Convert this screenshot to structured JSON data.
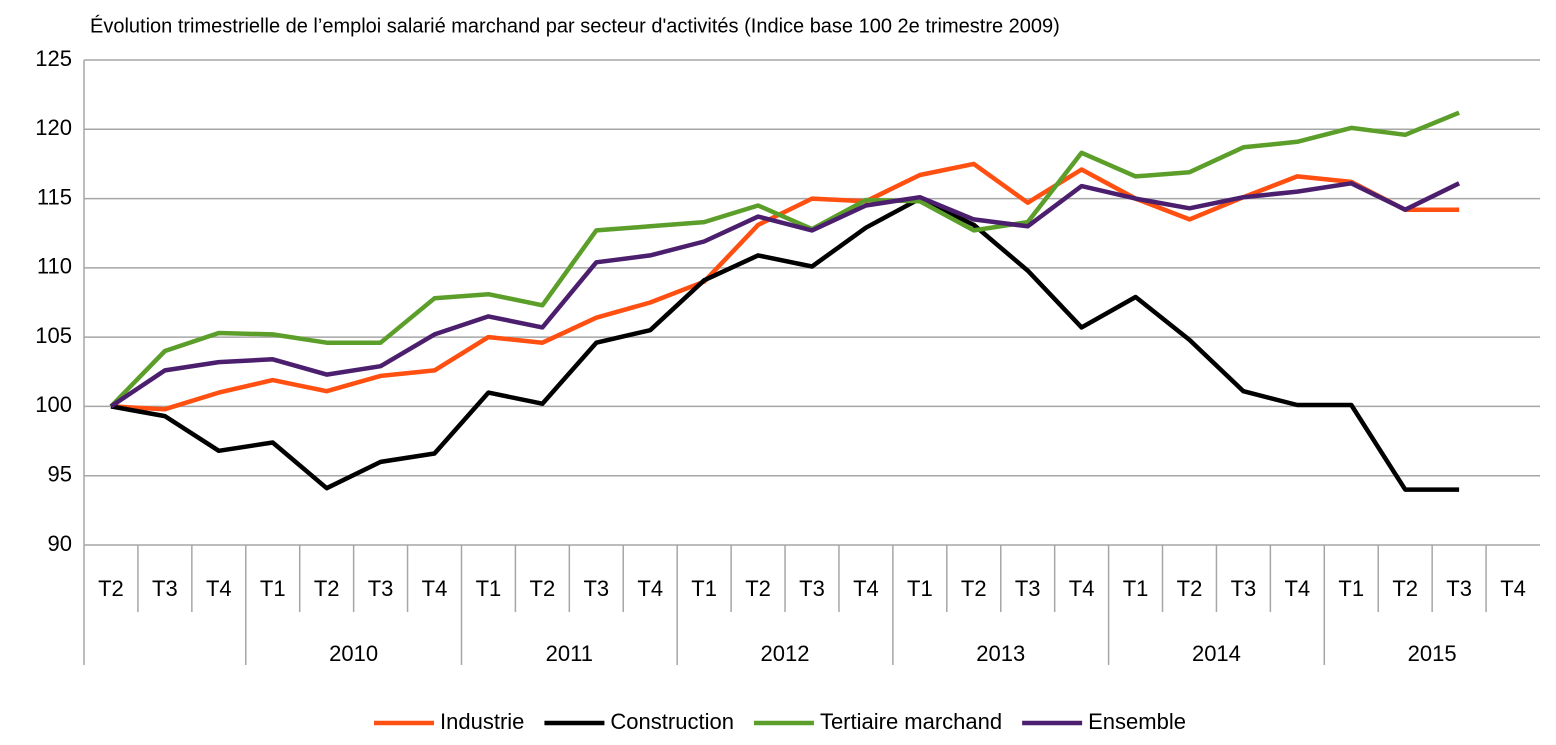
{
  "chart_data": {
    "type": "line",
    "title": "Évolution trimestrielle de l’emploi salarié marchand par secteur d'activités (Indice base 100 2e trimestre 2009)",
    "categories": [
      "T2",
      "T3",
      "T4",
      "T1",
      "T2",
      "T3",
      "T4",
      "T1",
      "T2",
      "T3",
      "T4",
      "T1",
      "T2",
      "T3",
      "T4",
      "T1",
      "T2",
      "T3",
      "T4",
      "T1",
      "T2",
      "T3",
      "T4",
      "T1",
      "T2",
      "T3",
      "T4"
    ],
    "years": [
      null,
      "2010",
      "2011",
      "2012",
      "2013",
      "2014",
      "2015"
    ],
    "series": [
      {
        "name": "Industrie",
        "color": "#ff4f11",
        "values": [
          100,
          99.8,
          101.0,
          101.9,
          101.1,
          102.2,
          102.6,
          105.0,
          104.6,
          106.4,
          107.5,
          109.0,
          113.1,
          115.0,
          114.8,
          116.7,
          117.5,
          114.7,
          117.1,
          115.0,
          113.5,
          115.1,
          116.6,
          116.2,
          114.2,
          114.2,
          null
        ]
      },
      {
        "name": "Construction",
        "color": "#000000",
        "values": [
          100,
          99.3,
          96.8,
          97.4,
          94.1,
          96.0,
          96.6,
          101.0,
          100.2,
          104.6,
          105.5,
          109.1,
          110.9,
          110.1,
          112.9,
          115.0,
          113.1,
          109.8,
          105.7,
          107.9,
          104.8,
          101.1,
          100.1,
          100.1,
          94.0,
          94.0,
          null
        ]
      },
      {
        "name": "Tertiaire marchand",
        "color": "#5c9e2a",
        "values": [
          100,
          104.0,
          105.3,
          105.2,
          104.6,
          104.6,
          107.8,
          108.1,
          107.3,
          112.7,
          113.0,
          113.3,
          114.5,
          112.8,
          114.9,
          114.8,
          112.7,
          113.3,
          118.3,
          116.6,
          116.9,
          118.7,
          119.1,
          120.1,
          119.6,
          121.2,
          null
        ]
      },
      {
        "name": "Ensemble",
        "color": "#4b1f6e",
        "values": [
          100,
          102.6,
          103.2,
          103.4,
          102.3,
          102.9,
          105.2,
          106.5,
          105.7,
          110.4,
          110.9,
          111.9,
          113.7,
          112.7,
          114.5,
          115.1,
          113.5,
          113.0,
          115.9,
          115.0,
          114.3,
          115.1,
          115.5,
          116.1,
          114.2,
          116.1,
          null
        ]
      }
    ],
    "ylim": [
      90,
      125
    ],
    "yticks": [
      90,
      95,
      100,
      105,
      110,
      115,
      120,
      125
    ],
    "grid": true,
    "legend": "bottom"
  }
}
